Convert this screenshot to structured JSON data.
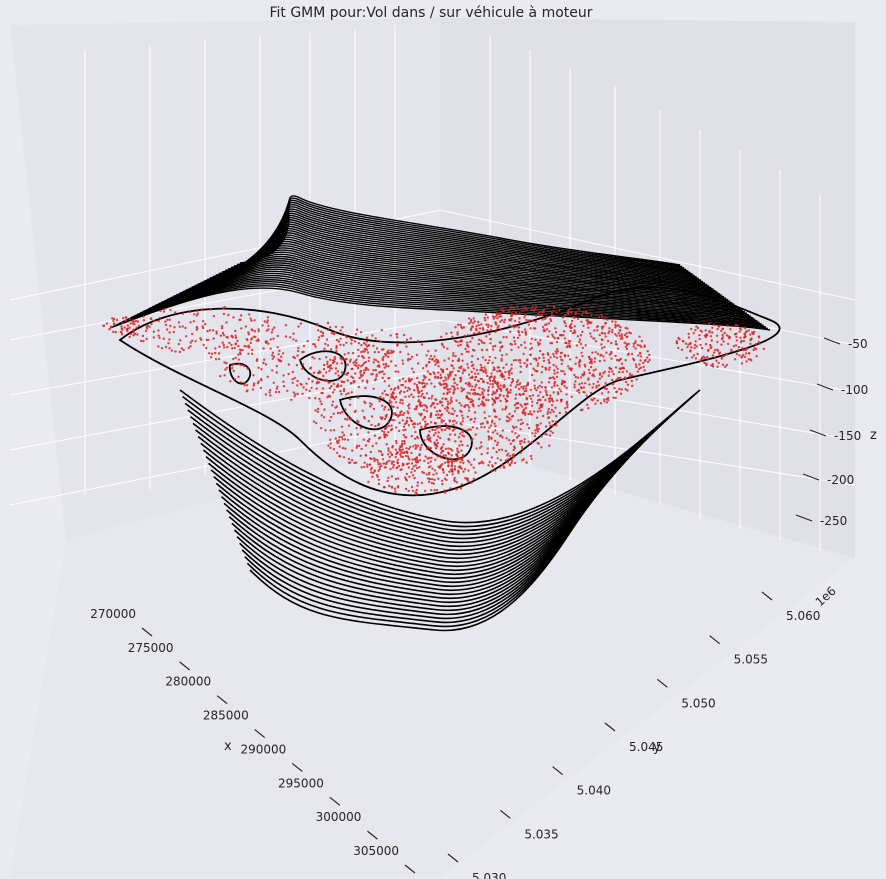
{
  "chart_data": {
    "type": "scatter",
    "subtype": "3d-surface-contour-with-scatter",
    "title": "Fit GMM pour:Vol dans / sur véhicule à moteur",
    "xlabel": "x",
    "ylabel": "y",
    "zlabel": "z",
    "y_offset_label": "1e6",
    "x_ticks": [
      "270000",
      "275000",
      "280000",
      "285000",
      "290000",
      "295000",
      "300000",
      "305000"
    ],
    "y_ticks": [
      "5.030",
      "5.035",
      "5.040",
      "5.045",
      "5.050",
      "5.055",
      "5.060"
    ],
    "z_ticks": [
      "-50",
      "-100",
      "-150",
      "-200",
      "-250"
    ],
    "xlim": [
      267000,
      307000
    ],
    "ylim": [
      5.0285,
      5.063
    ],
    "zlim": [
      -290,
      -20
    ],
    "grid": true,
    "series": [
      {
        "type": "contour",
        "color": "#000000"
      },
      {
        "type": "scatter",
        "color": "#d62728"
      }
    ],
    "colors": {
      "background": "#eaeaf2",
      "pane": "#e5e5ec",
      "contour": "#000000",
      "points": "#d62728"
    }
  }
}
